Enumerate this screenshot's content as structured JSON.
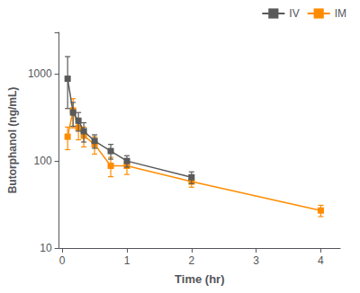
{
  "chart_data": {
    "type": "line",
    "xlabel": "Time (hr)",
    "ylabel": "Butorphanol (ng/mL)",
    "xlim": [
      -0.05,
      4.3
    ],
    "ylim": [
      10,
      3000
    ],
    "xticks": [
      0,
      1,
      2,
      3,
      4
    ],
    "yticks": [
      10,
      100,
      1000
    ],
    "log": "y",
    "grid": false,
    "legend": "upper right",
    "marker": "square",
    "series": [
      {
        "name": "IV",
        "color": "#595959",
        "x": [
          0.083,
          0.167,
          0.25,
          0.333,
          0.5,
          0.75,
          1.0,
          2.0
        ],
        "values": [
          880,
          360,
          290,
          220,
          170,
          130,
          100,
          65
        ],
        "yerr_lo": [
          480,
          110,
          70,
          55,
          30,
          25,
          15,
          10
        ],
        "yerr_hi": [
          700,
          110,
          70,
          55,
          30,
          25,
          15,
          10
        ]
      },
      {
        "name": "IM",
        "color": "#FF8C00",
        "x": [
          0.083,
          0.167,
          0.25,
          0.333,
          0.5,
          0.75,
          1.0,
          2.0,
          4.0
        ],
        "values": [
          190,
          380,
          240,
          195,
          155,
          88,
          88,
          58,
          27
        ],
        "yerr_lo": [
          55,
          140,
          65,
          50,
          35,
          22,
          18,
          8,
          4
        ],
        "yerr_hi": [
          55,
          140,
          65,
          50,
          35,
          22,
          18,
          8,
          4
        ]
      }
    ]
  }
}
